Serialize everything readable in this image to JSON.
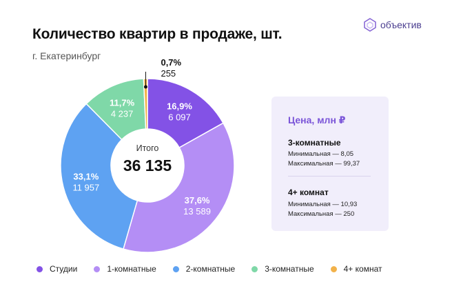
{
  "header": {
    "title": "Количество квартир в продаже, шт.",
    "subtitle": "г. Екатеринбург",
    "logo_text": "объектив"
  },
  "center": {
    "label": "Итого",
    "total": "36 135"
  },
  "price_card": {
    "title": "Цена, млн ₽",
    "groups": [
      {
        "name": "3-комнатные",
        "min": "Минимальная — 8,05",
        "max": "Максимальная — 99,37"
      },
      {
        "name": "4+ комнат",
        "min": "Минимальная — 10,93",
        "max": "Максимальная — 250"
      }
    ]
  },
  "chart_data": {
    "type": "pie",
    "title": "Количество квартир в продаже, шт.",
    "subtitle": "г. Екатеринбург",
    "donut": true,
    "total": 36135,
    "legend_position": "bottom",
    "slices": [
      {
        "name": "Студии",
        "value": 6097,
        "percent": "16,9%",
        "value_label": "6 097",
        "color": "#8352e6",
        "label_color": "#ffffff"
      },
      {
        "name": "1-комнатные",
        "value": 13589,
        "percent": "37,6%",
        "value_label": "13 589",
        "color": "#b48ef5",
        "label_color": "#ffffff"
      },
      {
        "name": "2-комнатные",
        "value": 11957,
        "percent": "33,1%",
        "value_label": "11 957",
        "color": "#5ea2f2",
        "label_color": "#ffffff"
      },
      {
        "name": "3-комнатные",
        "value": 4237,
        "percent": "11,7%",
        "value_label": "4 237",
        "color": "#7fd8a8",
        "label_color": "#ffffff"
      },
      {
        "name": "4+ комнат",
        "value": 255,
        "percent": "0,7%",
        "value_label": "255",
        "color": "#f2b24a",
        "label_color": "#111111"
      }
    ]
  }
}
